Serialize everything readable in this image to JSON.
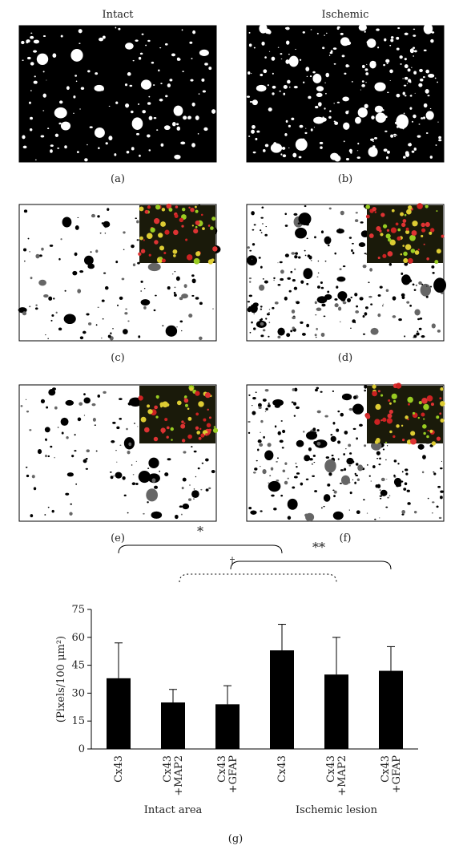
{
  "panels": {
    "column_titles": [
      "Intact",
      "Ischemic"
    ],
    "labels": [
      "(a)",
      "(b)",
      "(c)",
      "(d)",
      "(e)",
      "(f)"
    ]
  },
  "chart_data": {
    "type": "bar",
    "y_label": "(Pixels/100 μm²)",
    "categories": [
      "Cx43",
      "Cx43\n+MAP2",
      "Cx43\n+GFAP",
      "Cx43",
      "Cx43\n+MAP2",
      "Cx43\n+GFAP"
    ],
    "groups": [
      "Intact area",
      "Ischemic lesion"
    ],
    "series": [
      {
        "color": "#000000",
        "values": [
          38,
          25,
          24,
          53,
          40,
          42
        ],
        "errors": [
          19,
          7,
          10,
          14,
          20,
          13
        ]
      }
    ],
    "ylim": [
      0,
      75
    ],
    "yticks": [
      0,
      15,
      30,
      45,
      60,
      75
    ],
    "annotations": [
      "*",
      "**",
      "†"
    ]
  },
  "figure_label": "(g)"
}
